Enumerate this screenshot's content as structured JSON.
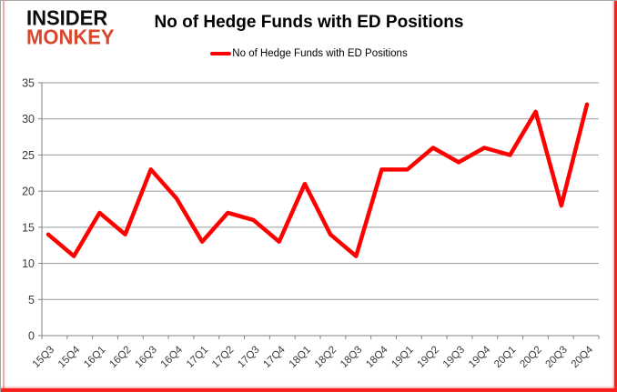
{
  "logo": {
    "line1": "INSIDER",
    "line2": "MONKEY",
    "line1_color": "#0d0d0d",
    "line2_color": "#d9472e"
  },
  "header": {
    "title": "No of Hedge Funds with ED Positions"
  },
  "legend": {
    "label": "No of Hedge Funds with ED Positions",
    "marker_color": "#ff0000"
  },
  "colors": {
    "series_line": "#ff0000",
    "grid": "#9a9a9a",
    "axis": "#808080",
    "tick_text": "#3a3a3a",
    "frame_red": "#ff1f1f",
    "frame_pink": "#f2a9a9"
  },
  "chart_data": {
    "type": "line",
    "title": "No of Hedge Funds with ED Positions",
    "categories": [
      "15Q3",
      "15Q4",
      "16Q1",
      "16Q2",
      "16Q3",
      "16Q4",
      "17Q1",
      "17Q2",
      "17Q3",
      "17Q4",
      "18Q1",
      "18Q2",
      "18Q3",
      "18Q4",
      "19Q1",
      "19Q2",
      "19Q3",
      "19Q4",
      "20Q1",
      "20Q2",
      "20Q3",
      "20Q4"
    ],
    "values": [
      14,
      11,
      17,
      14,
      23,
      19,
      13,
      17,
      16,
      13,
      21,
      14,
      11,
      23,
      23,
      26,
      24,
      26,
      25,
      31,
      18,
      32
    ],
    "series_name": "No of Hedge Funds with ED Positions",
    "xlabel": "",
    "ylabel": "",
    "ylim": [
      0,
      35
    ],
    "ytick_step": 5,
    "grid": true,
    "legend_position": "top-center",
    "line_color": "#ff0000"
  }
}
